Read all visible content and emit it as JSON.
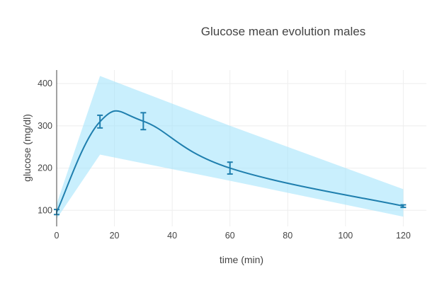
{
  "chart_data": {
    "type": "line",
    "title": "Glucose mean evolution males",
    "xlabel": "time (min)",
    "ylabel": "glucose (mg/dl)",
    "xlim": [
      0,
      128
    ],
    "ylim": [
      62,
      432
    ],
    "x_ticks": [
      0,
      20,
      40,
      60,
      80,
      100,
      120
    ],
    "y_ticks": [
      100,
      200,
      300,
      400
    ],
    "grid": true,
    "legend": "none",
    "series": [
      {
        "type": "spline",
        "x": [
          0,
          15,
          30,
          60,
          120
        ],
        "y": [
          96,
          310,
          311,
          200,
          110
        ],
        "error_y": [
          6,
          15,
          20,
          14,
          3
        ],
        "color": "#1f7fae"
      }
    ],
    "band": {
      "x": [
        0,
        15,
        60,
        120
      ],
      "upper": [
        115,
        418,
        300,
        150
      ],
      "lower": [
        80,
        232,
        170,
        85
      ],
      "color": "#a5e4fb"
    }
  }
}
